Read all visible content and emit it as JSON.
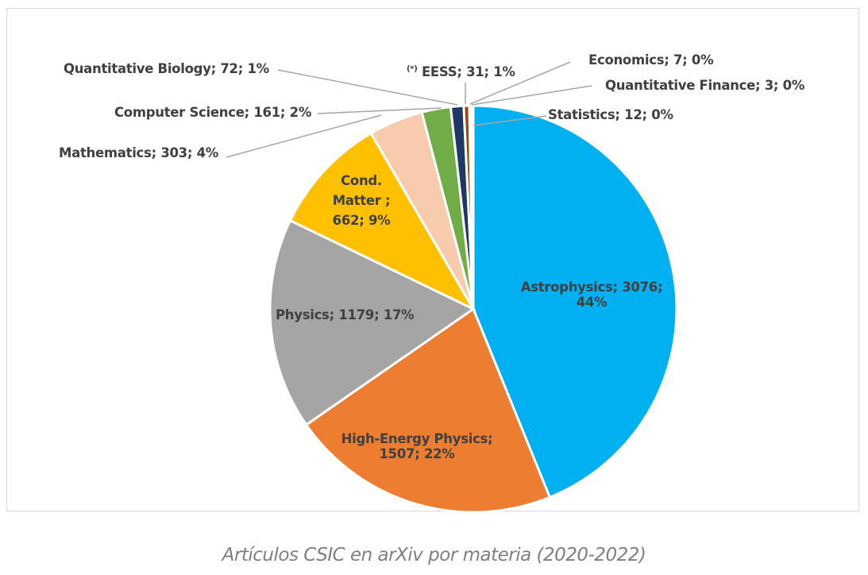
{
  "chart_data": {
    "type": "pie",
    "title": "",
    "caption": "Artículos CSIC en arXiv por materia (2020-2022)",
    "slices": [
      {
        "label": "Astrophysics",
        "value": 3076,
        "percent": "44%",
        "color": "#00B0F0"
      },
      {
        "label": "High-Energy Physics",
        "value": 1507,
        "percent": "22%",
        "color": "#ED7D31"
      },
      {
        "label": "Physics",
        "value": 1179,
        "percent": "17%",
        "color": "#A5A5A5"
      },
      {
        "label": "Cond. Matter ",
        "value": 662,
        "percent": "9%",
        "color": "#FFC000"
      },
      {
        "label": "Mathematics",
        "value": 303,
        "percent": "4%",
        "color": "#F8CBAD"
      },
      {
        "label": "Computer Science",
        "value": 161,
        "percent": "2%",
        "color": "#70AD47"
      },
      {
        "label": "Quantitative Biology",
        "value": 72,
        "percent": "1%",
        "color": "#203864"
      },
      {
        "label": "EESS",
        "value": 31,
        "percent": "1%",
        "color": "#9E480E",
        "note": "(*)"
      },
      {
        "label": "Economics",
        "value": 7,
        "percent": "0%",
        "color": "#636363"
      },
      {
        "label": "Quantitative Finance",
        "value": 3,
        "percent": "0%",
        "color": "#997300"
      },
      {
        "label": "Statistics",
        "value": 12,
        "percent": "0%",
        "color": "#264478"
      }
    ]
  }
}
